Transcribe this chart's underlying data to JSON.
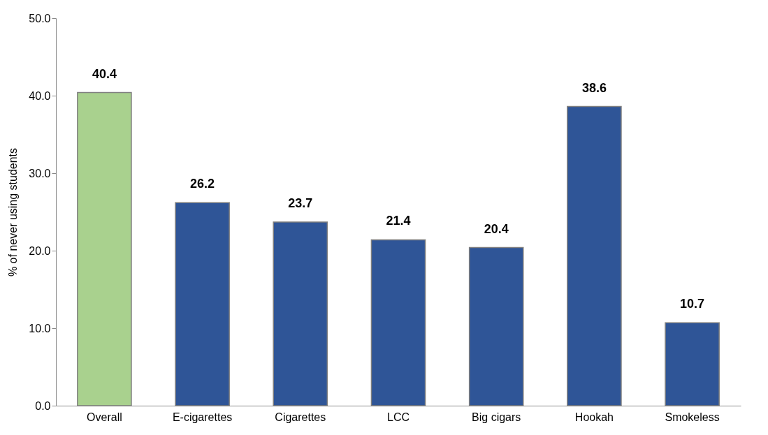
{
  "chart_data": {
    "type": "bar",
    "ylabel": "% of never using students",
    "categories": [
      "Overall",
      "E-cigarettes",
      "Cigarettes",
      "LCC",
      "Big cigars",
      "Hookah",
      "Smokeless"
    ],
    "values": [
      40.4,
      26.2,
      23.7,
      21.4,
      20.4,
      38.6,
      10.7
    ],
    "colors": [
      "#a9d18e",
      "#2f5597",
      "#2f5597",
      "#2f5597",
      "#2f5597",
      "#2f5597",
      "#2f5597"
    ],
    "ylim": [
      0,
      50
    ],
    "yticks": [
      {
        "value": 0,
        "label": "0.0"
      },
      {
        "value": 10,
        "label": "10.0"
      },
      {
        "value": 20,
        "label": "20.0"
      },
      {
        "value": 30,
        "label": "30.0"
      },
      {
        "value": 40,
        "label": "40.0"
      },
      {
        "value": 50,
        "label": "50.0"
      }
    ],
    "data_labels": true,
    "grid": false,
    "legend": false
  }
}
